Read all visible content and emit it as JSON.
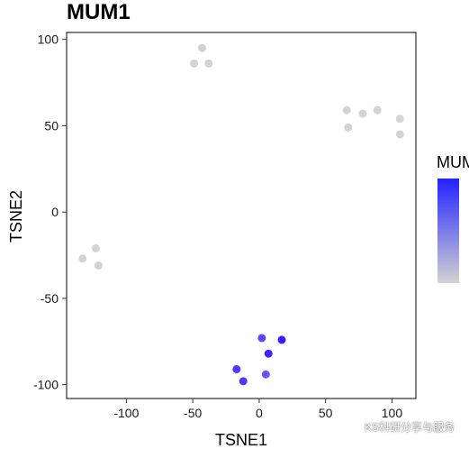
{
  "chart_data": {
    "type": "scatter",
    "title": "MUM1",
    "xlabel": "TSNE1",
    "ylabel": "TSNE2",
    "xlim": [
      -145,
      118
    ],
    "ylim": [
      -108,
      104
    ],
    "xticks": [
      -100,
      -50,
      0,
      50,
      100
    ],
    "yticks": [
      -100,
      -50,
      0,
      50,
      100
    ],
    "xtick_labels": [
      "-100",
      "-50",
      "0",
      "50",
      "100"
    ],
    "ytick_labels": [
      "-100",
      "-50",
      "0",
      "50",
      "100"
    ],
    "grid": false,
    "legend": {
      "title": "MUM",
      "type": "colorbar",
      "placement": "right",
      "colors": [
        "#2222ff",
        "#d3d3d3"
      ]
    },
    "points": [
      {
        "x": -43,
        "y": 95,
        "color": "#d3d3d3"
      },
      {
        "x": -49,
        "y": 86,
        "color": "#d3d3d3"
      },
      {
        "x": -38,
        "y": 86,
        "color": "#d3d3d3"
      },
      {
        "x": 66,
        "y": 59,
        "color": "#d3d3d3"
      },
      {
        "x": 78,
        "y": 57,
        "color": "#d3d3d3"
      },
      {
        "x": 89,
        "y": 59,
        "color": "#d3d3d3"
      },
      {
        "x": 67,
        "y": 49,
        "color": "#d3d3d3"
      },
      {
        "x": 106,
        "y": 54,
        "color": "#d3d3d3"
      },
      {
        "x": 106,
        "y": 45,
        "color": "#d3d3d3"
      },
      {
        "x": -123,
        "y": -21,
        "color": "#d3d3d3"
      },
      {
        "x": -133,
        "y": -27,
        "color": "#d3d3d3"
      },
      {
        "x": -121,
        "y": -31,
        "color": "#d3d3d3"
      },
      {
        "x": 2,
        "y": -73,
        "color": "#5e45ff"
      },
      {
        "x": 17,
        "y": -74,
        "color": "#3b1eff"
      },
      {
        "x": 7,
        "y": -82,
        "color": "#3d22ff"
      },
      {
        "x": -17,
        "y": -91,
        "color": "#5038ff"
      },
      {
        "x": -12,
        "y": -98,
        "color": "#4e35ff"
      },
      {
        "x": 5,
        "y": -94,
        "color": "#6a55ff"
      }
    ]
  },
  "watermark": "KS科研分享与服务"
}
